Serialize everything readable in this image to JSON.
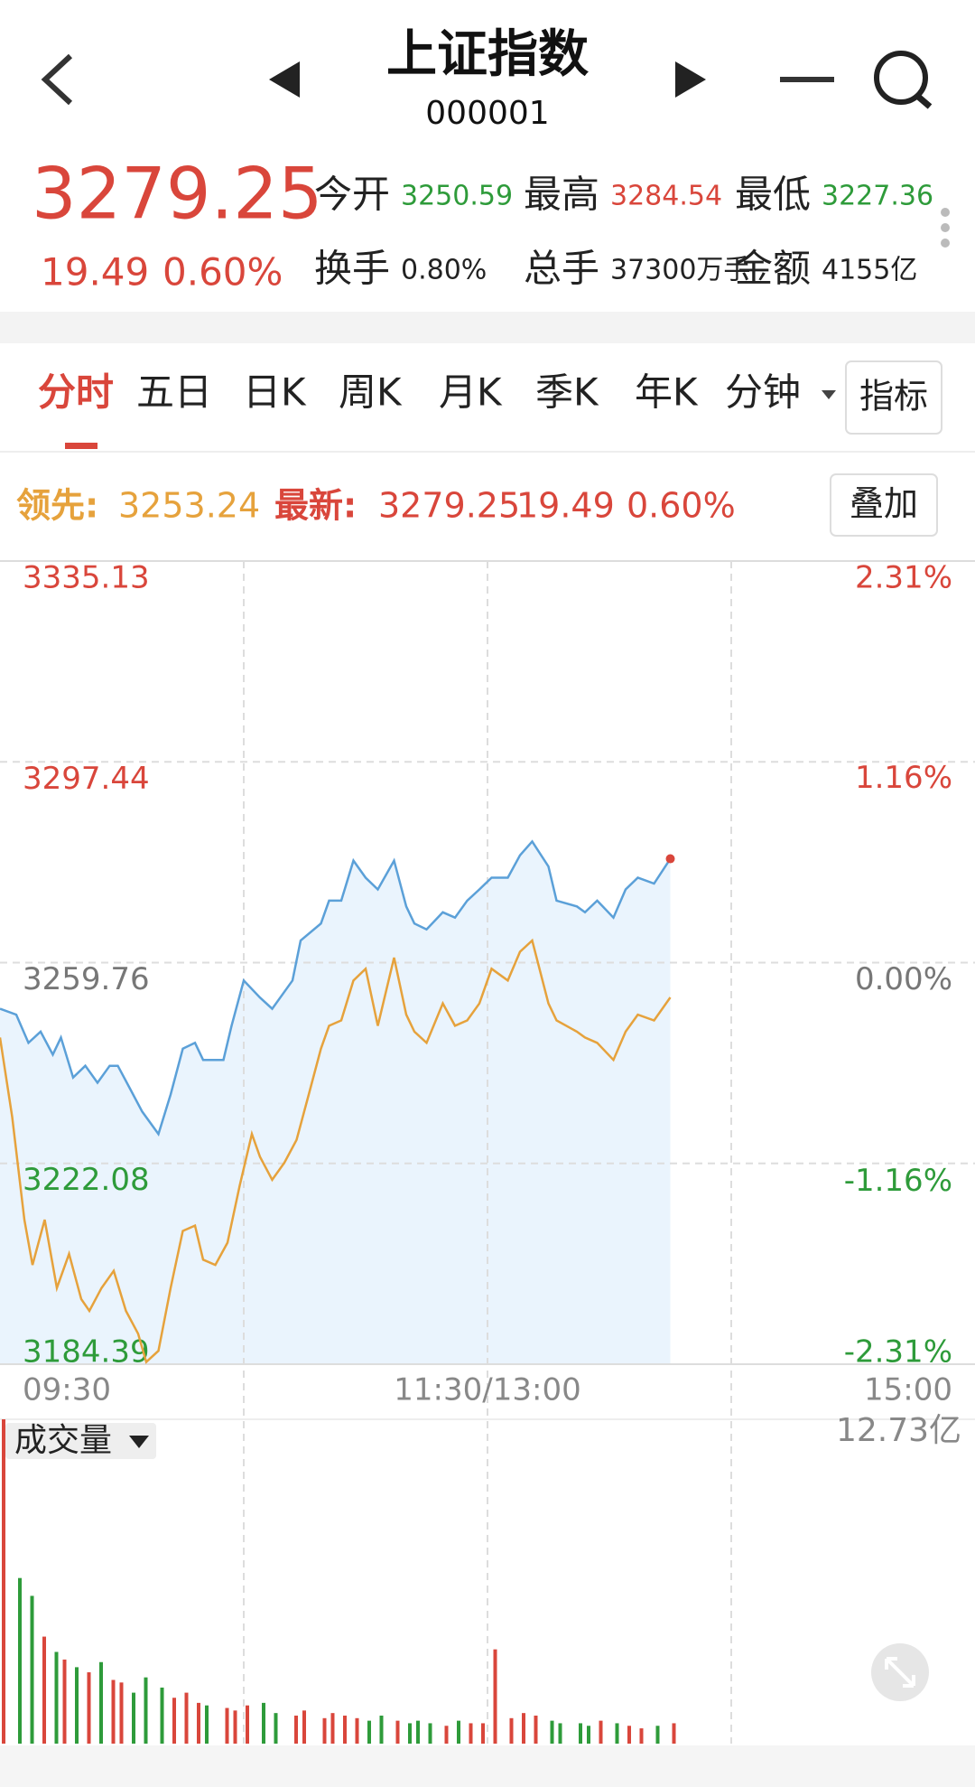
{
  "header": {
    "title": "上证指数",
    "code": "000001"
  },
  "quote": {
    "change": 19.49,
    "change_pct": {
      "value": 0.6,
      "label": "0.60%"
    },
    "stats": [
      {
        "label": "今开",
        "value": "3250.59",
        "color": "#2e9b3a"
      },
      {
        "label": "最高",
        "value": "3284.54",
        "color": "#d9463b"
      },
      {
        "label": "最低",
        "value": "3227.36",
        "color": "#2e9b3a"
      },
      {
        "label": "换手",
        "value": "0.80%",
        "color": "#222222"
      },
      {
        "label": "总手",
        "value": "37300万手",
        "color": "#222222"
      },
      {
        "label": "金额",
        "value": "4155亿",
        "color": "#222222"
      }
    ]
  },
  "tabs": {
    "items": [
      "分时",
      "五日",
      "日K",
      "周K",
      "月K",
      "季K",
      "年K",
      "分钟"
    ],
    "active": 0,
    "button": "指标"
  },
  "overlay_button": "叠加",
  "chart_data": {
    "type": "line",
    "xlim": [
      0,
      240
    ],
    "xticks": [
      {
        "value": 0,
        "label": "09:30"
      },
      {
        "value": 120,
        "label": "11:30/13:00"
      },
      {
        "value": 240,
        "label": "15:00"
      }
    ],
    "xgrid": [
      60,
      120,
      180
    ],
    "ylim": [
      3184.39,
      3335.13
    ],
    "yticks": [
      3335.13,
      3297.44,
      3259.76,
      3222.08,
      3184.39
    ],
    "y2lim": [
      -2.31,
      2.31
    ],
    "y2ticks": [
      {
        "value": 2.31,
        "label": "2.31%"
      },
      {
        "value": 1.16,
        "label": "1.16%"
      },
      {
        "value": 0,
        "label": "0.00%"
      },
      {
        "value": -1.16,
        "label": "-1.16%"
      },
      {
        "value": -2.31,
        "label": "-2.31%"
      }
    ],
    "grid": true,
    "up_color": "#d9463b",
    "down_color": "#2e9b3a",
    "flat_color": "#777777",
    "series": [
      {
        "name": "最新:",
        "color": "#5ba0d8",
        "area_color": "#eaf4fd",
        "x": [
          0,
          4,
          7,
          10,
          13,
          15,
          18,
          21,
          24,
          27,
          29,
          32,
          35,
          39,
          42,
          45,
          48,
          50,
          55,
          57,
          60,
          64,
          67,
          72,
          74,
          79,
          81,
          84,
          87,
          90,
          93,
          97,
          100,
          102,
          105,
          109,
          112,
          115,
          118,
          121,
          125,
          128,
          131,
          135,
          137,
          142,
          144,
          147,
          151,
          154,
          157,
          161,
          165
        ],
        "values": [
          3251.1,
          3250.0,
          3244.7,
          3246.8,
          3242.5,
          3245.7,
          3238.2,
          3240.4,
          3237.2,
          3240.4,
          3240.4,
          3236.1,
          3231.8,
          3227.6,
          3235.0,
          3243.6,
          3244.7,
          3241.5,
          3241.5,
          3247.9,
          3256.4,
          3253.2,
          3251.1,
          3256.4,
          3263.9,
          3267.1,
          3271.4,
          3271.4,
          3278.9,
          3275.7,
          3273.5,
          3278.9,
          3270.3,
          3267.1,
          3266.0,
          3269.2,
          3268.2,
          3271.4,
          3273.5,
          3275.7,
          3275.7,
          3279.9,
          3282.5,
          3277.8,
          3271.4,
          3270.3,
          3269.2,
          3271.4,
          3268.2,
          3273.5,
          3275.7,
          3274.6,
          3279.25
        ]
      },
      {
        "name": "领先:",
        "color": "#e6a23c",
        "x": [
          0,
          3,
          6,
          8,
          11,
          14,
          17,
          20,
          22,
          25,
          28,
          31,
          34,
          36,
          39,
          42,
          45,
          48,
          50,
          53,
          56,
          59,
          62,
          64,
          67,
          70,
          73,
          76,
          79,
          81,
          84,
          87,
          90,
          93,
          97,
          100,
          102,
          105,
          109,
          112,
          115,
          118,
          121,
          125,
          128,
          131,
          135,
          137,
          142,
          144,
          147,
          151,
          154,
          157,
          161,
          165
        ],
        "values": [
          3245.7,
          3230.8,
          3211.5,
          3203.0,
          3211.5,
          3198.7,
          3205.1,
          3196.6,
          3194.4,
          3198.7,
          3201.9,
          3194.4,
          3190.1,
          3184.8,
          3186.9,
          3198.7,
          3209.4,
          3210.4,
          3204.0,
          3203.0,
          3207.2,
          3217.9,
          3227.6,
          3223.3,
          3219.0,
          3222.2,
          3226.5,
          3235.0,
          3243.6,
          3247.9,
          3248.9,
          3256.4,
          3258.6,
          3247.9,
          3260.7,
          3250.0,
          3246.8,
          3244.7,
          3252.1,
          3247.9,
          3248.9,
          3252.1,
          3258.6,
          3256.4,
          3261.8,
          3263.9,
          3252.1,
          3248.9,
          3246.8,
          3245.7,
          3244.7,
          3241.5,
          3246.8,
          3250.0,
          3248.9,
          3253.24
        ]
      }
    ],
    "volume": {
      "label": "成交量",
      "x": [
        0,
        4,
        7,
        10,
        13,
        15,
        18,
        21,
        24,
        27,
        29,
        32,
        35,
        39,
        42,
        45,
        48,
        50,
        55,
        57,
        60,
        64,
        67,
        72,
        74,
        79,
        81,
        84,
        87,
        90,
        93,
        97,
        100,
        102,
        105,
        109,
        112,
        115,
        118,
        121,
        125,
        128,
        131,
        135,
        137,
        142,
        144,
        147,
        151,
        154,
        157,
        161,
        165
      ],
      "values": [
        12.73,
        6.5,
        5.8,
        4.2,
        3.6,
        3.3,
        3.0,
        2.8,
        3.2,
        2.5,
        2.4,
        2.0,
        2.6,
        2.2,
        1.8,
        2.0,
        1.6,
        1.5,
        1.4,
        1.3,
        1.5,
        1.6,
        1.2,
        1.1,
        1.3,
        1.0,
        1.2,
        1.1,
        1.0,
        0.9,
        1.1,
        0.9,
        0.8,
        0.9,
        0.8,
        0.7,
        0.9,
        0.8,
        0.8,
        3.7,
        1.0,
        1.2,
        1.1,
        0.9,
        0.8,
        0.8,
        0.7,
        0.9,
        0.8,
        0.7,
        0.6,
        0.7,
        0.8
      ],
      "ylim": [
        0,
        12.73
      ],
      "yticks": [
        {
          "value": 12.73,
          "label": "12.73亿"
        }
      ]
    }
  }
}
